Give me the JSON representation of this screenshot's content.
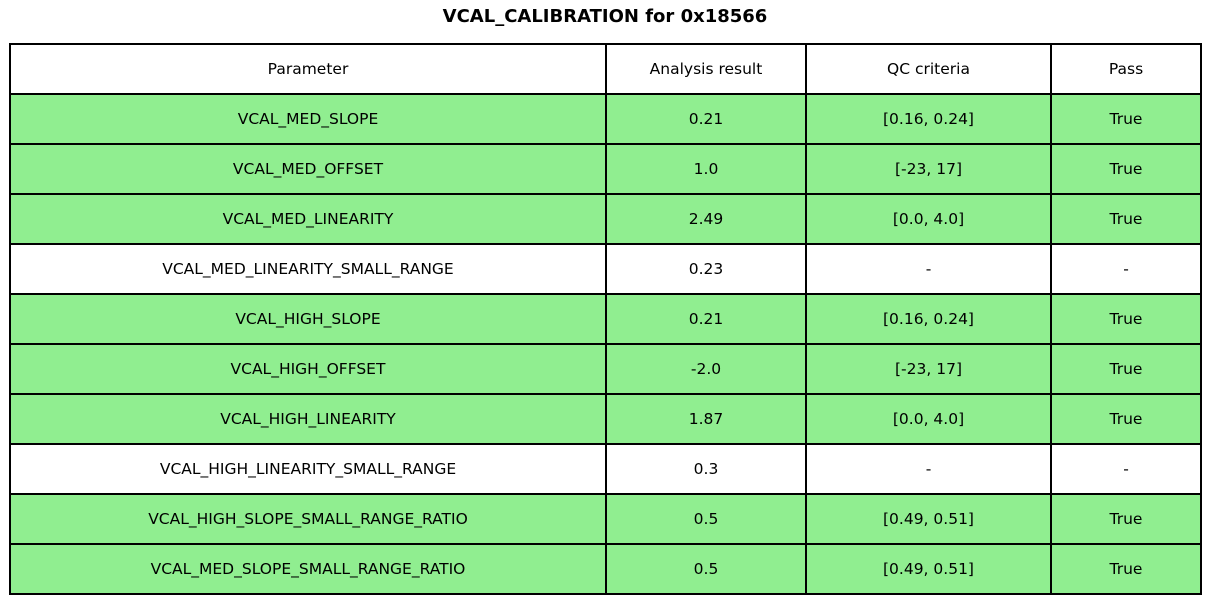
{
  "title": "VCAL_CALIBRATION for 0x18566",
  "colors": {
    "pass_row_background": "#90EE90",
    "neutral_row_background": "#FFFFFF",
    "border": "#000000",
    "text": "#000000",
    "figure_background": "#FFFFFF"
  },
  "table": {
    "columns": [
      "Parameter",
      "Analysis result",
      "QC criteria",
      "Pass"
    ],
    "rows": [
      {
        "parameter": "VCAL_MED_SLOPE",
        "analysis_result": "0.21",
        "qc_criteria": "[0.16, 0.24]",
        "pass": "True"
      },
      {
        "parameter": "VCAL_MED_OFFSET",
        "analysis_result": "1.0",
        "qc_criteria": "[-23, 17]",
        "pass": "True"
      },
      {
        "parameter": "VCAL_MED_LINEARITY",
        "analysis_result": "2.49",
        "qc_criteria": "[0.0, 4.0]",
        "pass": "True"
      },
      {
        "parameter": "VCAL_MED_LINEARITY_SMALL_RANGE",
        "analysis_result": "0.23",
        "qc_criteria": "-",
        "pass": "-"
      },
      {
        "parameter": "VCAL_HIGH_SLOPE",
        "analysis_result": "0.21",
        "qc_criteria": "[0.16, 0.24]",
        "pass": "True"
      },
      {
        "parameter": "VCAL_HIGH_OFFSET",
        "analysis_result": "-2.0",
        "qc_criteria": "[-23, 17]",
        "pass": "True"
      },
      {
        "parameter": "VCAL_HIGH_LINEARITY",
        "analysis_result": "1.87",
        "qc_criteria": "[0.0, 4.0]",
        "pass": "True"
      },
      {
        "parameter": "VCAL_HIGH_LINEARITY_SMALL_RANGE",
        "analysis_result": "0.3",
        "qc_criteria": "-",
        "pass": "-"
      },
      {
        "parameter": "VCAL_HIGH_SLOPE_SMALL_RANGE_RATIO",
        "analysis_result": "0.5",
        "qc_criteria": "[0.49, 0.51]",
        "pass": "True"
      },
      {
        "parameter": "VCAL_MED_SLOPE_SMALL_RANGE_RATIO",
        "analysis_result": "0.5",
        "qc_criteria": "[0.49, 0.51]",
        "pass": "True"
      }
    ]
  },
  "chart_data": {
    "type": "table",
    "title": "VCAL_CALIBRATION for 0x18566",
    "columns": [
      "Parameter",
      "Analysis result",
      "QC criteria",
      "Pass"
    ],
    "rows": [
      [
        "VCAL_MED_SLOPE",
        "0.21",
        "[0.16, 0.24]",
        "True"
      ],
      [
        "VCAL_MED_OFFSET",
        "1.0",
        "[-23, 17]",
        "True"
      ],
      [
        "VCAL_MED_LINEARITY",
        "2.49",
        "[0.0, 4.0]",
        "True"
      ],
      [
        "VCAL_MED_LINEARITY_SMALL_RANGE",
        "0.23",
        "-",
        "-"
      ],
      [
        "VCAL_HIGH_SLOPE",
        "0.21",
        "[0.16, 0.24]",
        "True"
      ],
      [
        "VCAL_HIGH_OFFSET",
        "-2.0",
        "[-23, 17]",
        "True"
      ],
      [
        "VCAL_HIGH_LINEARITY",
        "1.87",
        "[0.0, 4.0]",
        "True"
      ],
      [
        "VCAL_HIGH_LINEARITY_SMALL_RANGE",
        "0.3",
        "-",
        "-"
      ],
      [
        "VCAL_HIGH_SLOPE_SMALL_RANGE_RATIO",
        "0.5",
        "[0.49, 0.51]",
        "True"
      ],
      [
        "VCAL_MED_SLOPE_SMALL_RANGE_RATIO",
        "0.5",
        "[0.49, 0.51]",
        "True"
      ]
    ],
    "row_highlighted_green": [
      true,
      true,
      true,
      false,
      true,
      true,
      true,
      false,
      true,
      true
    ],
    "layout": {
      "title_position": "top-center",
      "header_background": "#FFFFFF",
      "grid": "full-borders"
    }
  }
}
